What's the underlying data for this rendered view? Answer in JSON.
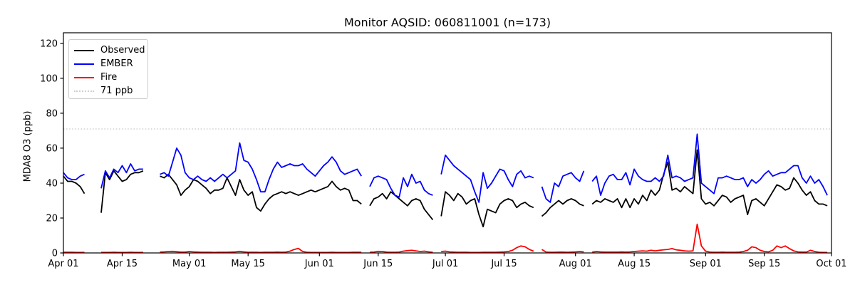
{
  "chart_data": {
    "type": "line",
    "title": "Monitor AQSID: 060811001 (n=173)",
    "ylabel": "MDA8 O3 (ppb)",
    "xlabel": "",
    "n_points": 173,
    "grid": false,
    "legend_position": "upper left",
    "x_start_date": "Apr 01",
    "x_end_date": "Sep 30",
    "x_frequency": "daily",
    "x_unit": "days since Apr 01",
    "x_days_total": 183,
    "ylim": [
      0,
      126
    ],
    "yticks": [
      0,
      20,
      40,
      60,
      80,
      100,
      120
    ],
    "xtick_labels": [
      "Apr 01",
      "Apr 15",
      "May 01",
      "May 15",
      "Jun 01",
      "Jun 15",
      "Jul 01",
      "Jul 15",
      "Aug 01",
      "Aug 15",
      "Sep 01",
      "Sep 15",
      "Oct 01"
    ],
    "xtick_days": [
      0,
      14,
      30,
      44,
      61,
      75,
      91,
      105,
      122,
      136,
      153,
      167,
      183
    ],
    "threshold": {
      "label": "71 ppb",
      "value": 71,
      "color": "#cfcfcf",
      "style": "dotted"
    },
    "series": [
      {
        "name": "Observed",
        "color": "#000000",
        "style": "solid",
        "values": [
          44,
          41,
          41,
          40,
          38,
          34,
          null,
          null,
          null,
          23,
          46,
          42,
          47,
          44,
          41,
          42,
          45,
          46,
          46,
          47,
          null,
          null,
          null,
          44,
          43,
          45,
          42,
          39,
          33,
          36,
          38,
          42,
          41,
          39,
          37,
          34,
          36,
          36,
          37,
          43,
          38,
          33,
          42,
          36,
          33,
          35,
          26,
          24,
          28,
          31,
          33,
          34,
          35,
          34,
          35,
          34,
          33,
          34,
          35,
          36,
          35,
          36,
          37,
          38,
          41,
          38,
          36,
          37,
          36,
          30,
          30,
          28,
          null,
          27,
          31,
          32,
          34,
          31,
          35,
          33,
          31,
          29,
          27,
          30,
          31,
          30,
          25,
          22,
          19,
          null,
          21,
          35,
          33,
          30,
          34,
          32,
          28,
          30,
          31,
          22,
          15,
          25,
          24,
          23,
          28,
          30,
          31,
          30,
          26,
          28,
          29,
          27,
          26,
          null,
          21,
          23,
          26,
          28,
          30,
          28,
          30,
          31,
          30,
          28,
          27,
          null,
          28,
          30,
          29,
          31,
          30,
          29,
          31,
          26,
          31,
          26,
          31,
          28,
          33,
          30,
          36,
          33,
          36,
          45,
          52,
          36,
          37,
          35,
          38,
          36,
          34,
          59,
          31,
          28,
          29,
          27,
          30,
          33,
          32,
          29,
          31,
          32,
          33,
          22,
          30,
          31,
          29,
          27,
          31,
          35,
          39,
          38,
          36,
          37,
          43,
          40,
          36,
          33,
          35,
          30,
          28,
          28,
          27
        ]
      },
      {
        "name": "EMBER",
        "color": "#0000ff",
        "style": "solid",
        "values": [
          46,
          43,
          42,
          42,
          44,
          45,
          null,
          null,
          null,
          37,
          47,
          43,
          48,
          46,
          50,
          46,
          51,
          47,
          48,
          48,
          null,
          null,
          null,
          45,
          46,
          44,
          52,
          60,
          56,
          46,
          43,
          42,
          44,
          42,
          41,
          43,
          41,
          43,
          45,
          43,
          45,
          47,
          63,
          53,
          52,
          48,
          42,
          35,
          35,
          42,
          48,
          52,
          49,
          50,
          51,
          50,
          50,
          51,
          48,
          46,
          44,
          47,
          50,
          52,
          55,
          52,
          47,
          45,
          46,
          47,
          48,
          44,
          null,
          38,
          43,
          44,
          43,
          42,
          37,
          33,
          32,
          43,
          38,
          45,
          40,
          41,
          36,
          34,
          33,
          null,
          45,
          56,
          53,
          50,
          48,
          46,
          44,
          42,
          35,
          29,
          46,
          37,
          40,
          44,
          48,
          47,
          42,
          38,
          45,
          47,
          43,
          44,
          43,
          null,
          38,
          31,
          29,
          40,
          38,
          44,
          45,
          46,
          43,
          41,
          47,
          null,
          41,
          44,
          33,
          40,
          44,
          45,
          42,
          42,
          46,
          39,
          48,
          44,
          42,
          41,
          41,
          43,
          41,
          44,
          56,
          43,
          44,
          43,
          41,
          42,
          43,
          68,
          40,
          38,
          36,
          34,
          43,
          43,
          44,
          43,
          42,
          42,
          43,
          38,
          42,
          40,
          42,
          45,
          47,
          44,
          45,
          46,
          46,
          48,
          50,
          50,
          43,
          40,
          44,
          40,
          42,
          38,
          33
        ]
      },
      {
        "name": "Fire",
        "color": "#ff0000",
        "style": "solid",
        "values": [
          0.4,
          0.4,
          0.4,
          0.3,
          0.3,
          0.3,
          null,
          null,
          null,
          0.3,
          0.3,
          0.3,
          0.4,
          0.3,
          0.3,
          0.3,
          0.4,
          0.3,
          0.3,
          0.3,
          null,
          null,
          null,
          0.5,
          0.6,
          0.8,
          0.9,
          0.7,
          0.5,
          0.5,
          0.8,
          0.6,
          0.5,
          0.4,
          0.4,
          0.4,
          0.3,
          0.4,
          0.4,
          0.4,
          0.5,
          0.6,
          0.9,
          0.6,
          0.4,
          0.4,
          0.4,
          0.3,
          0.4,
          0.4,
          0.4,
          0.5,
          0.4,
          0.5,
          1.0,
          2.0,
          2.6,
          0.8,
          0.4,
          0.3,
          0.3,
          0.3,
          0.3,
          0.3,
          0.4,
          0.3,
          0.3,
          0.3,
          0.3,
          0.4,
          0.4,
          0.4,
          null,
          0.4,
          0.5,
          0.9,
          0.8,
          0.5,
          0.4,
          0.4,
          0.5,
          1.0,
          1.3,
          1.5,
          1.2,
          0.8,
          1.0,
          0.6,
          0.4,
          null,
          0.8,
          1.0,
          0.6,
          0.5,
          0.4,
          0.4,
          0.4,
          0.3,
          0.3,
          0.3,
          0.4,
          0.4,
          0.4,
          0.4,
          0.5,
          0.6,
          0.8,
          1.5,
          3.0,
          4.0,
          3.5,
          2.0,
          1.0,
          null,
          2.0,
          0.5,
          0.4,
          0.4,
          0.5,
          0.5,
          0.4,
          0.5,
          0.6,
          0.8,
          0.6,
          null,
          0.5,
          0.8,
          0.6,
          0.5,
          0.5,
          0.5,
          0.5,
          0.6,
          0.5,
          0.6,
          0.8,
          1.0,
          1.2,
          1.0,
          1.5,
          1.2,
          1.5,
          1.8,
          2.0,
          2.5,
          1.8,
          1.5,
          1.2,
          1.0,
          1.2,
          16.5,
          4.0,
          1.0,
          0.5,
          0.4,
          0.4,
          0.5,
          0.4,
          0.4,
          0.4,
          0.5,
          0.8,
          1.5,
          3.5,
          3.0,
          1.5,
          0.8,
          0.6,
          1.5,
          4.0,
          3.0,
          4.0,
          2.5,
          1.2,
          0.6,
          0.5,
          0.5,
          1.5,
          0.8,
          0.4,
          0.3,
          0.3
        ]
      }
    ]
  }
}
